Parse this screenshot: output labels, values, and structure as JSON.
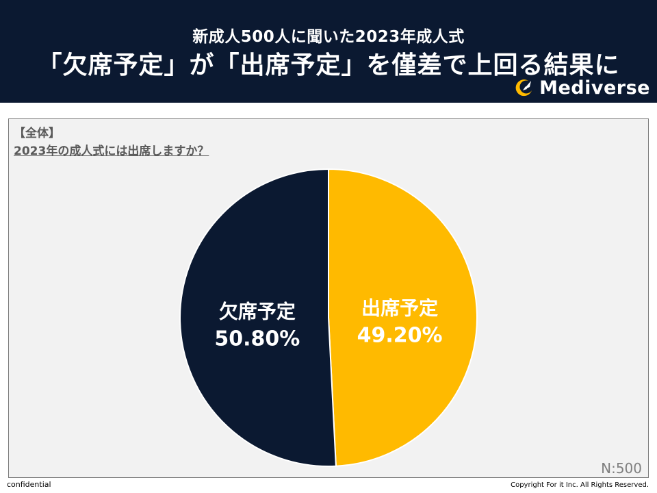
{
  "header": {
    "subtitle": "新成人500人に聞いた2023年成人式",
    "title": "「欠席予定」が「出席予定」を僅差で上回る結果に",
    "logo_text": "Mediverse"
  },
  "panel": {
    "segment_label": "【全体】",
    "question": "2023年の成人式には出席しますか？",
    "sample_size": "N:500"
  },
  "chart_data": {
    "type": "pie",
    "title": "2023年の成人式には出席しますか？",
    "slices": [
      {
        "label": "出席予定",
        "value": 49.2,
        "value_text": "49.20%",
        "color": "#ffba00"
      },
      {
        "label": "欠席予定",
        "value": 50.8,
        "value_text": "50.80%",
        "color": "#0b1931"
      }
    ],
    "start_angle": "12 o'clock",
    "direction": "clockwise",
    "legend": "none"
  },
  "footer": {
    "left": "confidential",
    "right": "Copyright For it Inc. All Rights Reserved."
  }
}
